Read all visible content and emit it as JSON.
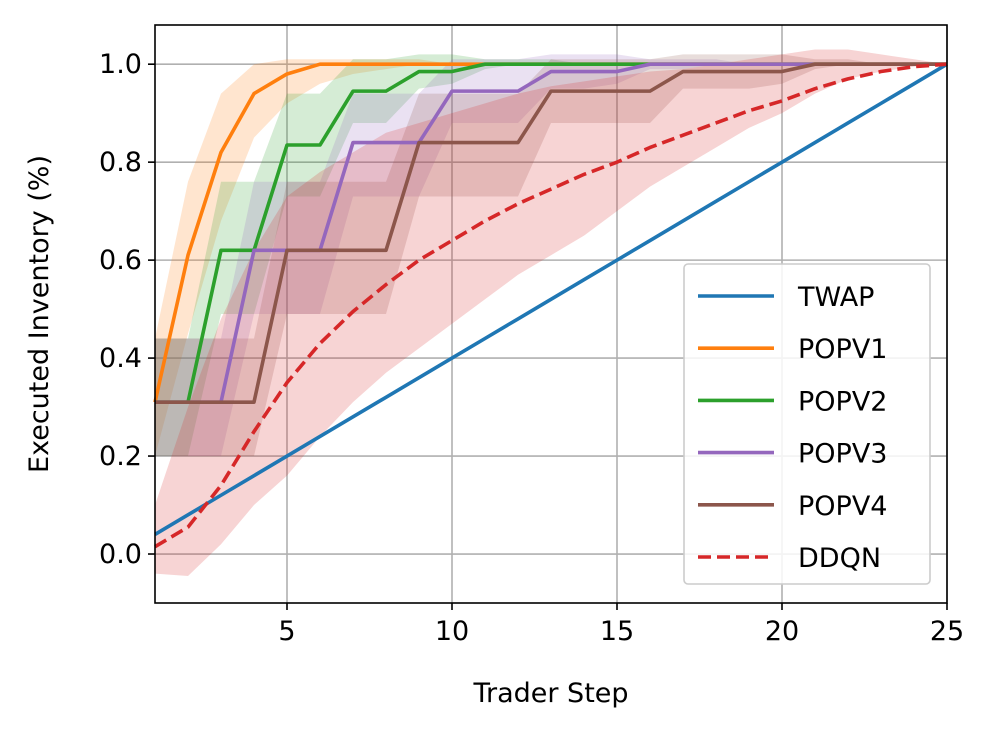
{
  "chart_data": {
    "type": "line",
    "title": "",
    "xlabel": "Trader Step",
    "ylabel": "Executed Inventory (%)",
    "xlim": [
      1,
      25
    ],
    "ylim": [
      -0.1,
      1.08
    ],
    "xticks": [
      5,
      10,
      15,
      20,
      25
    ],
    "yticks": [
      0.0,
      0.2,
      0.4,
      0.6,
      0.8,
      1.0
    ],
    "xtick_labels": [
      "5",
      "10",
      "15",
      "20",
      "25"
    ],
    "ytick_labels": [
      "0.0",
      "0.2",
      "0.4",
      "0.6",
      "0.8",
      "1.0"
    ],
    "grid": true,
    "legend_position": "lower-right",
    "x": [
      1,
      2,
      3,
      4,
      5,
      6,
      7,
      8,
      9,
      10,
      11,
      12,
      13,
      14,
      15,
      16,
      17,
      18,
      19,
      20,
      21,
      22,
      23,
      24,
      25
    ],
    "series": [
      {
        "name": "TWAP",
        "color": "#1f77b4",
        "dash": "solid",
        "values": [
          0.04,
          0.08,
          0.12,
          0.16,
          0.2,
          0.24,
          0.28,
          0.32,
          0.36,
          0.4,
          0.44,
          0.48,
          0.52,
          0.56,
          0.6,
          0.64,
          0.68,
          0.72,
          0.76,
          0.8,
          0.84,
          0.88,
          0.92,
          0.96,
          1.0
        ]
      },
      {
        "name": "POPV1",
        "color": "#ff7f0e",
        "dash": "solid",
        "values": [
          0.31,
          0.61,
          0.82,
          0.94,
          0.98,
          1.0,
          1.0,
          1.0,
          1.0,
          1.0,
          1.0,
          1.0,
          1.0,
          1.0,
          1.0,
          1.0,
          1.0,
          1.0,
          1.0,
          1.0,
          1.0,
          1.0,
          1.0,
          1.0,
          1.0
        ],
        "lower": [
          0.2,
          0.45,
          0.68,
          0.85,
          0.92,
          0.96,
          0.98,
          0.99,
          1.0,
          1.0,
          1.0,
          1.0,
          1.0,
          1.0,
          1.0,
          1.0,
          1.0,
          1.0,
          1.0,
          1.0,
          1.0,
          1.0,
          1.0,
          1.0,
          1.0
        ],
        "upper": [
          0.44,
          0.76,
          0.94,
          1.0,
          1.01,
          1.01,
          1.01,
          1.01,
          1.01,
          1.0,
          1.0,
          1.0,
          1.0,
          1.0,
          1.0,
          1.0,
          1.0,
          1.0,
          1.0,
          1.0,
          1.0,
          1.0,
          1.0,
          1.0,
          1.0
        ]
      },
      {
        "name": "POPV2",
        "color": "#2ca02c",
        "dash": "solid",
        "values": [
          0.31,
          0.31,
          0.62,
          0.62,
          0.835,
          0.835,
          0.945,
          0.945,
          0.985,
          0.985,
          1.0,
          1.0,
          1.0,
          1.0,
          1.0,
          1.0,
          1.0,
          1.0,
          1.0,
          1.0,
          1.0,
          1.0,
          1.0,
          1.0,
          1.0
        ],
        "lower": [
          0.2,
          0.2,
          0.49,
          0.49,
          0.73,
          0.73,
          0.88,
          0.88,
          0.95,
          0.96,
          0.99,
          1.0,
          1.0,
          1.0,
          1.0,
          1.0,
          1.0,
          1.0,
          1.0,
          1.0,
          1.0,
          1.0,
          1.0,
          1.0,
          1.0
        ],
        "upper": [
          0.44,
          0.44,
          0.76,
          0.76,
          0.94,
          0.94,
          1.01,
          1.01,
          1.02,
          1.02,
          1.01,
          1.01,
          1.01,
          1.0,
          1.0,
          1.0,
          1.0,
          1.0,
          1.0,
          1.0,
          1.0,
          1.0,
          1.0,
          1.0,
          1.0
        ]
      },
      {
        "name": "POPV3",
        "color": "#9467bd",
        "dash": "solid",
        "values": [
          0.31,
          0.31,
          0.31,
          0.62,
          0.62,
          0.62,
          0.84,
          0.84,
          0.84,
          0.945,
          0.945,
          0.945,
          0.985,
          0.985,
          0.985,
          1.0,
          1.0,
          1.0,
          1.0,
          1.0,
          1.0,
          1.0,
          1.0,
          1.0,
          1.0
        ],
        "lower": [
          0.2,
          0.2,
          0.2,
          0.49,
          0.49,
          0.49,
          0.73,
          0.73,
          0.73,
          0.88,
          0.88,
          0.88,
          0.95,
          0.95,
          0.96,
          0.99,
          0.99,
          1.0,
          1.0,
          1.0,
          1.0,
          1.0,
          1.0,
          1.0,
          1.0
        ],
        "upper": [
          0.44,
          0.44,
          0.44,
          0.76,
          0.76,
          0.76,
          0.94,
          0.94,
          0.94,
          1.01,
          1.01,
          1.01,
          1.02,
          1.02,
          1.02,
          1.01,
          1.01,
          1.01,
          1.0,
          1.0,
          1.0,
          1.0,
          1.0,
          1.0,
          1.0
        ]
      },
      {
        "name": "POPV4",
        "color": "#8c564b",
        "dash": "solid",
        "values": [
          0.31,
          0.31,
          0.31,
          0.31,
          0.62,
          0.62,
          0.62,
          0.62,
          0.84,
          0.84,
          0.84,
          0.84,
          0.945,
          0.945,
          0.945,
          0.945,
          0.985,
          0.985,
          0.985,
          0.985,
          1.0,
          1.0,
          1.0,
          1.0,
          1.0
        ],
        "lower": [
          0.2,
          0.2,
          0.2,
          0.2,
          0.49,
          0.49,
          0.49,
          0.49,
          0.73,
          0.73,
          0.73,
          0.73,
          0.88,
          0.88,
          0.88,
          0.88,
          0.95,
          0.95,
          0.95,
          0.96,
          0.99,
          1.0,
          1.0,
          1.0,
          1.0
        ],
        "upper": [
          0.44,
          0.44,
          0.44,
          0.44,
          0.76,
          0.76,
          0.76,
          0.76,
          0.94,
          0.94,
          0.94,
          0.94,
          1.01,
          1.01,
          1.01,
          1.01,
          1.02,
          1.02,
          1.02,
          1.02,
          1.01,
          1.01,
          1.0,
          1.0,
          1.0
        ]
      },
      {
        "name": "DDQN",
        "color": "#d62728",
        "dash": "dashed",
        "values": [
          0.015,
          0.055,
          0.14,
          0.25,
          0.35,
          0.43,
          0.495,
          0.55,
          0.6,
          0.64,
          0.68,
          0.715,
          0.745,
          0.775,
          0.8,
          0.83,
          0.855,
          0.88,
          0.905,
          0.925,
          0.95,
          0.97,
          0.985,
          0.995,
          1.0
        ],
        "lower": [
          -0.04,
          -0.045,
          0.02,
          0.1,
          0.16,
          0.24,
          0.31,
          0.37,
          0.42,
          0.47,
          0.52,
          0.57,
          0.61,
          0.65,
          0.7,
          0.75,
          0.79,
          0.83,
          0.87,
          0.9,
          0.94,
          0.97,
          0.985,
          0.995,
          1.0
        ],
        "upper": [
          0.1,
          0.3,
          0.48,
          0.62,
          0.73,
          0.78,
          0.82,
          0.86,
          0.88,
          0.9,
          0.92,
          0.94,
          0.955,
          0.965,
          0.975,
          0.985,
          0.99,
          1.0,
          1.01,
          1.02,
          1.03,
          1.03,
          1.02,
          1.01,
          1.0
        ]
      }
    ]
  }
}
